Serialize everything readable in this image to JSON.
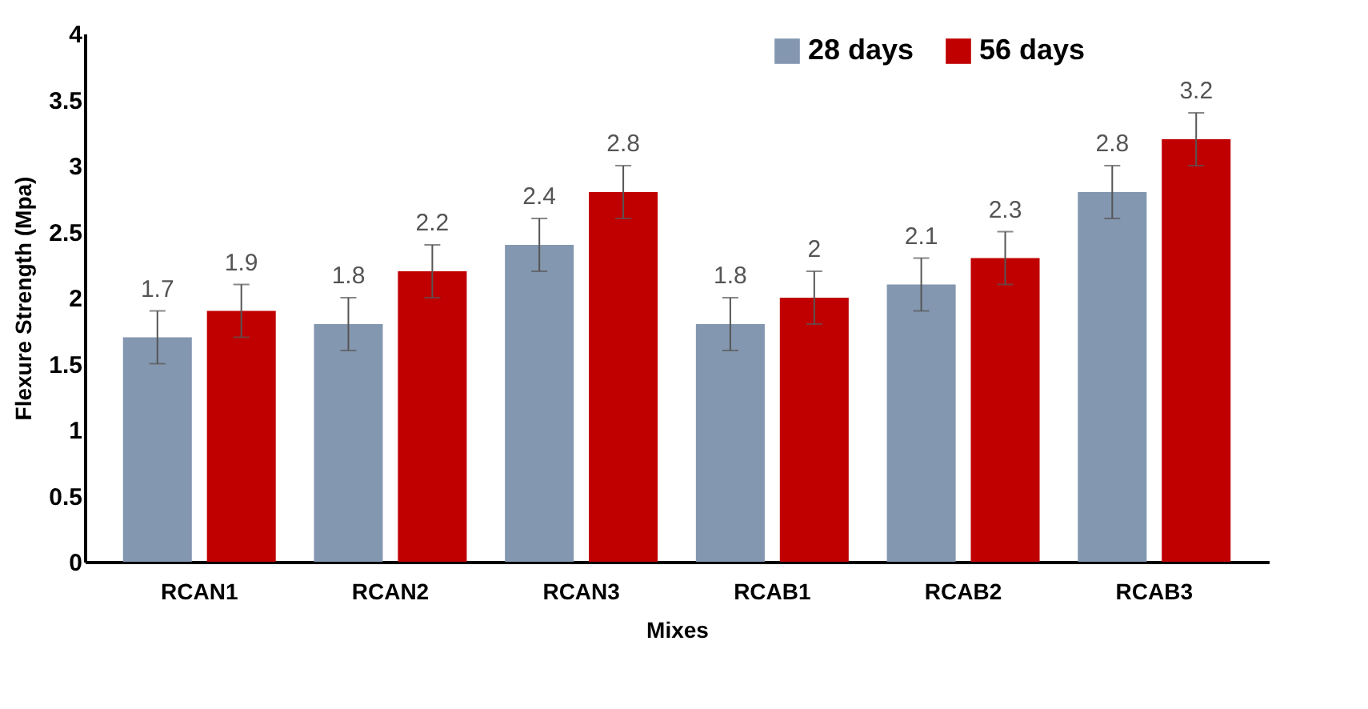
{
  "chart_data": {
    "type": "bar",
    "xlabel": "Mixes",
    "ylabel": "Flexure  Strength (Mpa)",
    "categories": [
      "RCAN1",
      "RCAN2",
      "RCAN3",
      "RCAB1",
      "RCAB2",
      "RCAB3"
    ],
    "series": [
      {
        "name": "28 days",
        "color": "#8497b0",
        "values": [
          1.7,
          1.8,
          2.4,
          1.8,
          2.1,
          2.8
        ],
        "errors": [
          0.2,
          0.2,
          0.2,
          0.2,
          0.2,
          0.2
        ]
      },
      {
        "name": "56 days",
        "color": "#c00000",
        "values": [
          1.9,
          2.2,
          2.8,
          2,
          2.3,
          3.2
        ],
        "errors": [
          0.2,
          0.2,
          0.2,
          0.2,
          0.2,
          0.2
        ]
      }
    ],
    "ylim": [
      0,
      4
    ],
    "yticks": [
      0,
      0.5,
      1,
      1.5,
      2,
      2.5,
      3,
      3.5,
      4
    ],
    "grid": false,
    "legend": "top right",
    "data_labels": true
  }
}
